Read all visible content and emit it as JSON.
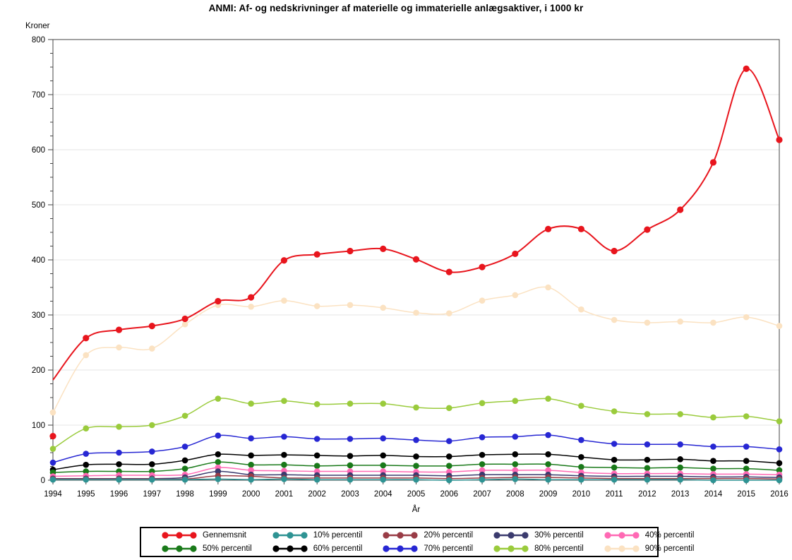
{
  "title": "ANMI: Af- og nedskrivninger af materielle og immaterielle anlægsaktiver, i 1000 kr",
  "chart_data": {
    "type": "line",
    "interpolation": "smooth-spline",
    "grid": "horizontal-major",
    "legend_position": "bottom",
    "x_axis": {
      "title": "År",
      "tick_labels": [
        1994,
        1995,
        1996,
        1997,
        1998,
        1999,
        2000,
        2001,
        2002,
        2003,
        2004,
        2005,
        2006,
        2007,
        2008,
        2009,
        2010,
        2011,
        2012,
        2013,
        2014,
        2015,
        2016
      ]
    },
    "y_axis": {
      "title": "Kroner",
      "min": 0,
      "max": 800,
      "major_tick_interval": 100,
      "minor_tick_interval": 25,
      "tick_labels": [
        0,
        100,
        200,
        300,
        400,
        500,
        600,
        700,
        800
      ]
    },
    "years": [
      1994,
      1995,
      1996,
      1997,
      1998,
      1999,
      2000,
      2001,
      2002,
      2003,
      2004,
      2005,
      2006,
      2007,
      2008,
      2009,
      2010,
      2011,
      2012,
      2013,
      2014,
      2015,
      2016
    ],
    "series": [
      {
        "name": "Gennemsnit",
        "color": "#e8151d",
        "line_start_override": 182,
        "values": [
          80,
          258,
          273,
          280,
          293,
          325,
          332,
          399,
          410,
          416,
          420,
          401,
          378,
          387,
          411,
          456,
          456,
          416,
          455,
          491,
          577,
          747,
          618
        ]
      },
      {
        "name": "10% percentil",
        "color": "#2e9393",
        "values": [
          1,
          1,
          1,
          1,
          1,
          2,
          1,
          2,
          1,
          1,
          1,
          1,
          0,
          1,
          2,
          1,
          1,
          1,
          1,
          1,
          0,
          0,
          0
        ]
      },
      {
        "name": "20% percentil",
        "color": "#993c46",
        "values": [
          2,
          2,
          2,
          2,
          2,
          8,
          7,
          4,
          4,
          4,
          4,
          4,
          3,
          4,
          5,
          5,
          4,
          3,
          3,
          3,
          3,
          3,
          2
        ]
      },
      {
        "name": "30% percentil",
        "color": "#3b3b6e",
        "values": [
          3,
          3,
          3,
          3,
          5,
          16,
          10,
          10,
          9,
          9,
          9,
          9,
          8,
          10,
          10,
          10,
          8,
          7,
          7,
          7,
          6,
          6,
          5
        ]
      },
      {
        "name": "40% percentil",
        "color": "#ff69b4",
        "values": [
          7,
          8,
          9,
          9,
          10,
          23,
          18,
          17,
          16,
          16,
          16,
          15,
          15,
          18,
          18,
          18,
          14,
          12,
          12,
          12,
          11,
          11,
          10
        ]
      },
      {
        "name": "50% percentil",
        "color": "#1a7a1a",
        "values": [
          14,
          16,
          16,
          16,
          21,
          33,
          28,
          28,
          26,
          27,
          27,
          26,
          26,
          29,
          29,
          29,
          24,
          23,
          22,
          23,
          21,
          21,
          18
        ]
      },
      {
        "name": "60% percentil",
        "color": "#000000",
        "values": [
          19,
          28,
          29,
          29,
          36,
          47,
          45,
          46,
          45,
          44,
          45,
          43,
          43,
          46,
          47,
          47,
          42,
          37,
          37,
          38,
          35,
          35,
          31
        ]
      },
      {
        "name": "70% percentil",
        "color": "#2727d3",
        "values": [
          32,
          48,
          50,
          52,
          61,
          81,
          76,
          79,
          75,
          75,
          76,
          73,
          71,
          78,
          79,
          82,
          73,
          66,
          65,
          65,
          61,
          61,
          56
        ]
      },
      {
        "name": "80% percentil",
        "color": "#9acb3c",
        "values": [
          57,
          94,
          97,
          100,
          117,
          148,
          139,
          144,
          138,
          139,
          139,
          132,
          131,
          140,
          144,
          148,
          135,
          125,
          120,
          120,
          114,
          116,
          107
        ]
      },
      {
        "name": "90% percentil",
        "color": "#fbe2c2",
        "values": [
          123,
          227,
          241,
          239,
          283,
          318,
          315,
          326,
          316,
          318,
          313,
          304,
          303,
          326,
          336,
          350,
          310,
          291,
          286,
          288,
          286,
          296,
          280
        ]
      }
    ]
  },
  "colors": {
    "frame": "#444444",
    "gridline": "#e4e4e4",
    "text": "#000000",
    "background": "#ffffff"
  }
}
